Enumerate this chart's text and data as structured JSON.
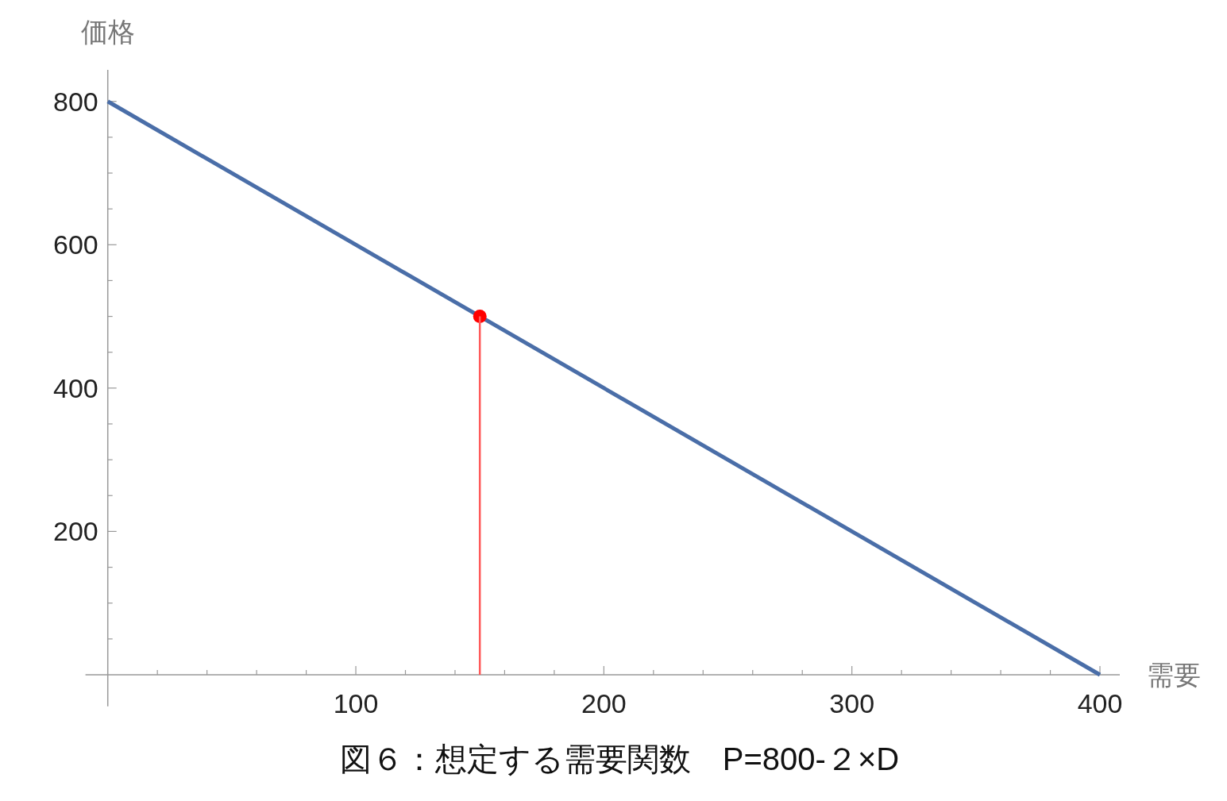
{
  "chart_data": {
    "type": "line",
    "xlabel": "需要",
    "ylabel": "価格",
    "annotations": [
      "図６：想定する需要関数　P=800-２×D"
    ],
    "xlim": [
      -9,
      408
    ],
    "ylim": [
      -44,
      844
    ],
    "xticks": [
      {
        "value": 20,
        "label": null
      },
      {
        "value": 40,
        "label": null
      },
      {
        "value": 60,
        "label": null
      },
      {
        "value": 80,
        "label": null
      },
      100,
      {
        "value": 120,
        "label": null
      },
      {
        "value": 140,
        "label": null
      },
      {
        "value": 160,
        "label": null
      },
      {
        "value": 180,
        "label": null
      },
      200,
      {
        "value": 220,
        "label": null
      },
      {
        "value": 240,
        "label": null
      },
      {
        "value": 260,
        "label": null
      },
      {
        "value": 280,
        "label": null
      },
      300,
      {
        "value": 320,
        "label": null
      },
      {
        "value": 340,
        "label": null
      },
      {
        "value": 360,
        "label": null
      },
      {
        "value": 380,
        "label": null
      },
      400
    ],
    "yticks": [
      {
        "value": 50,
        "label": null
      },
      {
        "value": 100,
        "label": null
      },
      {
        "value": 150,
        "label": null
      },
      200,
      {
        "value": 250,
        "label": null
      },
      {
        "value": 300,
        "label": null
      },
      {
        "value": 350,
        "label": null
      },
      400,
      {
        "value": 450,
        "label": null
      },
      {
        "value": 500,
        "label": null
      },
      {
        "value": 550,
        "label": null
      },
      600,
      {
        "value": 650,
        "label": null
      },
      {
        "value": 700,
        "label": null
      },
      {
        "value": 750,
        "label": null
      },
      800
    ],
    "series": [
      {
        "type": "line",
        "color": "#4a6ea8",
        "x": [
          0,
          400
        ],
        "values": [
          800,
          0
        ]
      },
      {
        "type": "scatter",
        "color": "#ff0000",
        "x": [
          150
        ],
        "values": [
          500
        ]
      },
      {
        "type": "line",
        "color": "#ff5a5a",
        "x": [
          150,
          150
        ],
        "values": [
          0,
          500
        ]
      }
    ]
  }
}
